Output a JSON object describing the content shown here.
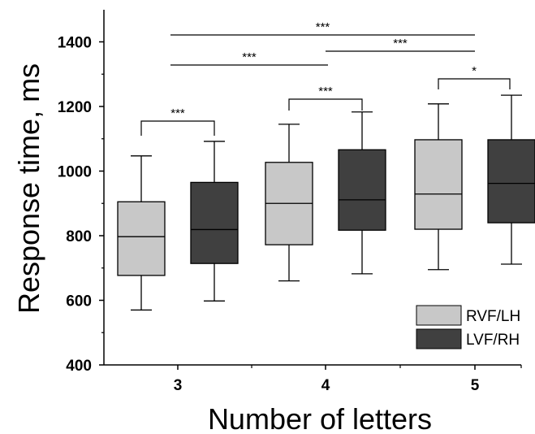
{
  "chart_data": {
    "type": "box",
    "xlabel": "Number of letters",
    "ylabel": "Response time, ms",
    "categories": [
      "3",
      "4",
      "5"
    ],
    "ylim": [
      400,
      1500
    ],
    "yticks": [
      400,
      600,
      800,
      1000,
      1200,
      1400
    ],
    "grid": false,
    "legend_position": "bottom-right",
    "series": [
      {
        "name": "RVF/LH",
        "color": "#c8c8c8",
        "boxes": [
          {
            "whisker_low": 570,
            "q1": 677,
            "median": 797,
            "q3": 905,
            "whisker_high": 1047
          },
          {
            "whisker_low": 660,
            "q1": 772,
            "median": 900,
            "q3": 1027,
            "whisker_high": 1145
          },
          {
            "whisker_low": 695,
            "q1": 820,
            "median": 929,
            "q3": 1097,
            "whisker_high": 1208
          }
        ]
      },
      {
        "name": "LVF/RH",
        "color": "#404040",
        "boxes": [
          {
            "whisker_low": 598,
            "q1": 714,
            "median": 819,
            "q3": 965,
            "whisker_high": 1092
          },
          {
            "whisker_low": 682,
            "q1": 817,
            "median": 911,
            "q3": 1066,
            "whisker_high": 1183
          },
          {
            "whisker_low": 712,
            "q1": 840,
            "median": 962,
            "q3": 1097,
            "whisker_high": 1235
          }
        ]
      }
    ],
    "significance": [
      {
        "type": "bracket",
        "from": "3:RVF/LH",
        "to": "3:LVF/RH",
        "label": "***"
      },
      {
        "type": "bracket",
        "from": "4:RVF/LH",
        "to": "4:LVF/RH",
        "label": "***"
      },
      {
        "type": "bracket",
        "from": "5:RVF/LH",
        "to": "5:LVF/RH",
        "label": "*"
      },
      {
        "type": "line",
        "from": "3",
        "to": "4",
        "label": "***"
      },
      {
        "type": "line",
        "from": "4",
        "to": "5",
        "label": "***"
      },
      {
        "type": "line",
        "from": "3",
        "to": "5",
        "label": "***"
      }
    ]
  }
}
